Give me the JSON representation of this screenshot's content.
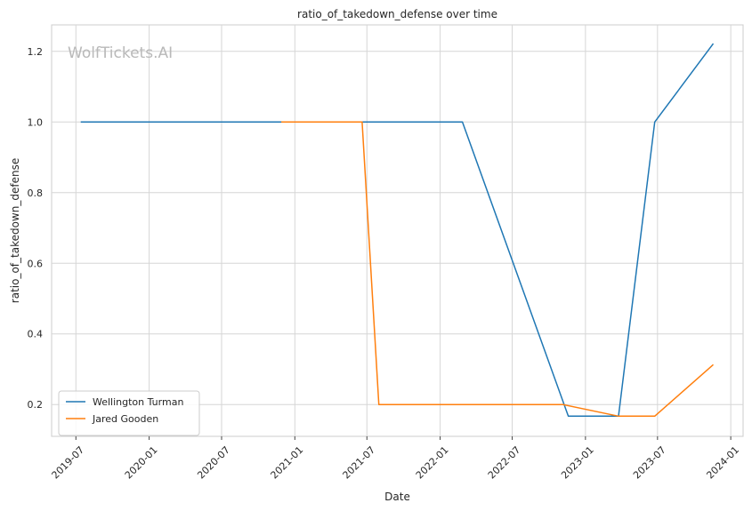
{
  "chart_data": {
    "type": "line",
    "title": "ratio_of_takedown_defense over time",
    "xlabel": "Date",
    "ylabel": "ratio_of_takedown_defense",
    "watermark": "WolfTickets.AI",
    "xlim": [
      "2019-05-01",
      "2024-02-01"
    ],
    "ylim": [
      0.11,
      1.275
    ],
    "x_ticks": [
      "2019-07",
      "2020-01",
      "2020-07",
      "2021-01",
      "2021-07",
      "2022-01",
      "2022-07",
      "2023-01",
      "2023-07",
      "2024-01"
    ],
    "y_ticks": [
      "0.2",
      "0.4",
      "0.6",
      "0.8",
      "1.0",
      "1.2"
    ],
    "grid": true,
    "legend_position": "lower-left",
    "series": [
      {
        "name": "Wellington Turman",
        "color": "#1f77b4",
        "points": [
          {
            "x": "2019-07-13",
            "y": 1.0
          },
          {
            "x": "2020-11-28",
            "y": 1.0
          },
          {
            "x": "2022-02-26",
            "y": 1.0
          },
          {
            "x": "2022-11-19",
            "y": 0.167
          },
          {
            "x": "2023-03-25",
            "y": 0.167
          },
          {
            "x": "2023-06-24",
            "y": 1.0
          },
          {
            "x": "2023-11-18",
            "y": 1.222
          }
        ]
      },
      {
        "name": "Jared Gooden",
        "color": "#ff7f0e",
        "points": [
          {
            "x": "2020-11-28",
            "y": 1.0
          },
          {
            "x": "2021-06-19",
            "y": 1.0
          },
          {
            "x": "2021-07-31",
            "y": 0.2
          },
          {
            "x": "2022-11-05",
            "y": 0.2
          },
          {
            "x": "2023-03-25",
            "y": 0.167
          },
          {
            "x": "2023-06-24",
            "y": 0.167
          },
          {
            "x": "2023-11-18",
            "y": 0.313
          }
        ]
      }
    ]
  }
}
